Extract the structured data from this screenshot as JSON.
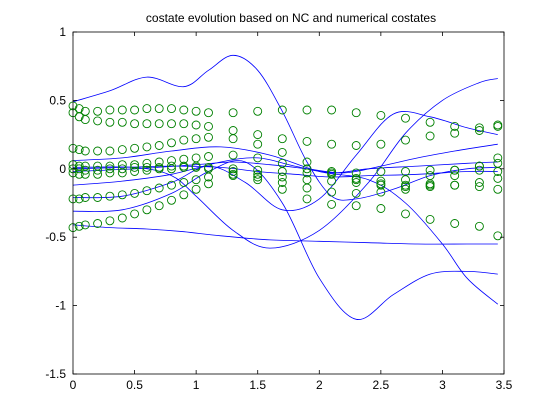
{
  "chart_data": {
    "type": "line",
    "title": "costate evolution based on NC and numerical costates",
    "xlabel": "",
    "ylabel": "",
    "xlim": [
      0,
      3.5
    ],
    "ylim": [
      -1.5,
      1
    ],
    "xticks": [
      0,
      0.5,
      1,
      1.5,
      2,
      2.5,
      3,
      3.5
    ],
    "xtick_labels": [
      "0",
      "0.5",
      "1",
      "1.5",
      "2",
      "2.5",
      "3",
      "3.5"
    ],
    "yticks": [
      -1.5,
      -1,
      -0.5,
      0,
      0.5,
      1
    ],
    "ytick_labels": [
      "-1.5",
      "-1",
      "-0.5",
      "0",
      "0.5",
      "1"
    ],
    "grid": false,
    "legend": "none",
    "colors": {
      "nc_lines": "#0000ff",
      "numerical_markers": "#008000"
    },
    "nc_lines": [
      {
        "x": [
          0,
          0.3,
          0.6,
          0.9,
          1.1,
          1.3,
          1.5,
          1.7,
          1.9,
          2.1,
          2.3,
          2.6,
          2.9,
          3.2,
          3.45
        ],
        "y": [
          0.49,
          0.57,
          0.67,
          0.6,
          0.72,
          0.83,
          0.72,
          0.42,
          0.05,
          -0.2,
          -0.22,
          -0.15,
          -0.05,
          0.0,
          0.01
        ]
      },
      {
        "x": [
          0,
          0.4,
          0.8,
          1.1,
          1.4,
          1.7,
          2.0,
          2.3,
          2.6,
          2.9,
          3.2,
          3.45
        ],
        "y": [
          -0.31,
          -0.3,
          -0.18,
          -0.02,
          0.05,
          -0.25,
          -0.8,
          -1.1,
          -0.92,
          -0.77,
          -0.75,
          -0.77
        ]
      },
      {
        "x": [
          0,
          0.5,
          1.0,
          1.3,
          1.6,
          1.9,
          2.2,
          2.5,
          2.8,
          3.1,
          3.45
        ],
        "y": [
          -0.02,
          0.0,
          0.03,
          0.05,
          0.03,
          0.0,
          -0.03,
          0.02,
          0.08,
          0.13,
          0.18
        ]
      },
      {
        "x": [
          0,
          0.4,
          0.8,
          1.2,
          1.5,
          1.8,
          2.1,
          2.4,
          2.8,
          3.2,
          3.45
        ],
        "y": [
          0.0,
          0.01,
          0.02,
          0.01,
          -0.02,
          -0.04,
          -0.06,
          -0.05,
          -0.04,
          -0.02,
          -0.02
        ]
      },
      {
        "x": [
          0,
          0.3,
          0.6,
          0.9,
          1.2,
          1.6,
          2.0,
          2.4,
          2.8,
          3.2,
          3.45
        ],
        "y": [
          -0.41,
          -0.43,
          -0.44,
          -0.46,
          -0.49,
          -0.52,
          -0.53,
          -0.54,
          -0.55,
          -0.55,
          -0.55
        ]
      },
      {
        "x": [
          0,
          0.4,
          0.8,
          1.2,
          1.6,
          2.0,
          2.4,
          2.7,
          3.0,
          3.2,
          3.45
        ],
        "y": [
          0.06,
          0.08,
          0.13,
          0.16,
          0.1,
          -0.02,
          -0.08,
          -0.25,
          -0.55,
          -0.8,
          -0.99
        ]
      },
      {
        "x": [
          0,
          0.4,
          0.8,
          1.2,
          1.5,
          1.8,
          2.1,
          2.4,
          2.8,
          3.2,
          3.45
        ],
        "y": [
          -0.12,
          -0.09,
          -0.04,
          0.05,
          0.08,
          0.02,
          -0.03,
          0.0,
          0.02,
          0.04,
          0.05
        ]
      },
      {
        "x": [
          0,
          0.5,
          0.8,
          1.0,
          1.3,
          1.6,
          2.0,
          2.4,
          2.7,
          3.0,
          3.3,
          3.45
        ],
        "y": [
          0.01,
          0.01,
          -0.05,
          -0.2,
          -0.45,
          -0.58,
          -0.45,
          -0.1,
          0.26,
          0.5,
          0.63,
          0.66
        ]
      },
      {
        "x": [
          0,
          0.4,
          0.8,
          1.1,
          1.4,
          1.7,
          2.0,
          2.3,
          2.6,
          2.9,
          3.2,
          3.45
        ],
        "y": [
          -0.21,
          -0.2,
          -0.1,
          0.02,
          -0.1,
          -0.3,
          -0.22,
          0.1,
          0.4,
          0.38,
          0.3,
          0.25
        ]
      }
    ],
    "numerical_costates": [
      {
        "x": [
          0,
          0.05,
          0.1,
          0.2,
          0.3,
          0.4,
          0.5,
          0.6,
          0.7,
          0.8,
          0.9,
          1.0,
          1.1,
          1.3,
          1.5,
          1.7,
          1.9,
          2.1,
          2.3,
          2.5,
          2.7,
          2.9,
          3.1,
          3.3,
          3.45
        ],
        "y": [
          0.46,
          0.44,
          0.42,
          0.42,
          0.43,
          0.43,
          0.43,
          0.44,
          0.44,
          0.44,
          0.43,
          0.42,
          0.41,
          0.41,
          0.42,
          0.43,
          0.43,
          0.43,
          0.41,
          0.39,
          0.37,
          0.34,
          0.31,
          0.3,
          0.32
        ]
      },
      {
        "x": [
          0,
          0.05,
          0.1,
          0.2,
          0.3,
          0.4,
          0.5,
          0.6,
          0.7,
          0.8,
          0.9,
          1.0,
          1.1,
          1.3,
          1.5,
          1.7,
          1.9,
          2.1,
          2.3,
          2.5,
          2.7,
          2.9,
          3.1,
          3.3,
          3.45
        ],
        "y": [
          0.41,
          0.38,
          0.36,
          0.35,
          0.34,
          0.34,
          0.33,
          0.33,
          0.33,
          0.33,
          0.33,
          0.32,
          0.31,
          0.28,
          0.25,
          0.22,
          0.2,
          0.18,
          0.17,
          0.18,
          0.21,
          0.24,
          0.26,
          0.28,
          0.31
        ]
      },
      {
        "x": [
          0,
          0.05,
          0.1,
          0.2,
          0.3,
          0.4,
          0.5,
          0.6,
          0.7,
          0.8,
          0.9,
          1.0,
          1.1,
          1.3,
          1.5,
          1.7,
          1.9,
          2.1,
          2.3,
          2.5,
          2.7,
          2.9,
          3.1,
          3.3,
          3.45
        ],
        "y": [
          0.15,
          0.14,
          0.13,
          0.13,
          0.13,
          0.14,
          0.15,
          0.16,
          0.17,
          0.19,
          0.21,
          0.22,
          0.23,
          0.22,
          0.18,
          0.12,
          0.05,
          -0.02,
          -0.08,
          -0.12,
          -0.13,
          -0.11,
          -0.05,
          0.02,
          0.08
        ]
      },
      {
        "x": [
          0,
          0.05,
          0.1,
          0.2,
          0.3,
          0.4,
          0.5,
          0.6,
          0.7,
          0.8,
          0.9,
          1.0,
          1.1,
          1.3,
          1.5,
          1.7,
          1.9,
          2.1,
          2.3,
          2.5,
          2.7,
          2.9,
          3.1,
          3.3,
          3.45
        ],
        "y": [
          0.03,
          0.02,
          0.02,
          0.02,
          0.02,
          0.03,
          0.03,
          0.04,
          0.05,
          0.06,
          0.07,
          0.08,
          0.09,
          0.1,
          0.08,
          0.04,
          0.0,
          -0.04,
          -0.07,
          -0.09,
          -0.08,
          -0.05,
          -0.01,
          0.02,
          0.04
        ]
      },
      {
        "x": [
          0,
          0.05,
          0.1,
          0.2,
          0.3,
          0.4,
          0.5,
          0.6,
          0.7,
          0.8,
          0.9,
          1.0,
          1.1,
          1.3,
          1.5,
          1.7,
          1.9,
          2.1,
          2.3,
          2.5,
          2.7,
          2.9,
          3.1,
          3.3,
          3.45
        ],
        "y": [
          0.0,
          0.0,
          -0.01,
          -0.01,
          0.0,
          0.0,
          0.01,
          0.01,
          0.01,
          0.02,
          0.02,
          0.02,
          0.01,
          0.0,
          -0.01,
          -0.02,
          -0.03,
          -0.03,
          -0.03,
          -0.02,
          -0.02,
          -0.01,
          -0.01,
          -0.01,
          -0.02
        ]
      },
      {
        "x": [
          0,
          0.05,
          0.1,
          0.2,
          0.3,
          0.4,
          0.5,
          0.6,
          0.7,
          0.8,
          0.9,
          1.0,
          1.1,
          1.3,
          1.5,
          1.7,
          1.9,
          2.1,
          2.3,
          2.5,
          2.7,
          2.9,
          3.1,
          3.3,
          3.45
        ],
        "y": [
          -0.03,
          -0.04,
          -0.04,
          -0.04,
          -0.03,
          -0.03,
          -0.02,
          -0.01,
          0.0,
          0.0,
          0.01,
          0.01,
          0.0,
          -0.02,
          -0.04,
          -0.06,
          -0.08,
          -0.09,
          -0.1,
          -0.11,
          -0.12,
          -0.12,
          -0.12,
          -0.1,
          -0.07
        ]
      },
      {
        "x": [
          0,
          0.05,
          0.1,
          0.2,
          0.3,
          0.4,
          0.5,
          0.6,
          0.7,
          0.8,
          0.9,
          1.0,
          1.1,
          1.3,
          1.5,
          1.7,
          1.9,
          2.1,
          2.3,
          2.5,
          2.7,
          2.9,
          3.1,
          3.3,
          3.45
        ],
        "y": [
          -0.22,
          -0.22,
          -0.21,
          -0.21,
          -0.2,
          -0.19,
          -0.18,
          -0.16,
          -0.14,
          -0.12,
          -0.1,
          -0.08,
          -0.06,
          -0.04,
          -0.06,
          -0.1,
          -0.14,
          -0.17,
          -0.18,
          -0.17,
          -0.15,
          -0.13,
          -0.12,
          -0.13,
          -0.15
        ]
      },
      {
        "x": [
          0,
          0.05,
          0.1,
          0.2,
          0.3,
          0.4,
          0.5,
          0.6,
          0.7,
          0.8,
          0.9,
          1.0,
          1.1,
          1.3,
          1.5,
          1.7,
          1.9,
          2.1,
          2.3,
          2.5,
          2.7,
          2.9,
          3.1,
          3.3,
          3.45
        ],
        "y": [
          -0.43,
          -0.42,
          -0.41,
          -0.4,
          -0.38,
          -0.36,
          -0.33,
          -0.3,
          -0.27,
          -0.23,
          -0.19,
          -0.15,
          -0.11,
          -0.05,
          -0.08,
          -0.15,
          -0.22,
          -0.26,
          -0.27,
          -0.29,
          -0.33,
          -0.37,
          -0.4,
          -0.42,
          -0.49
        ]
      }
    ]
  }
}
